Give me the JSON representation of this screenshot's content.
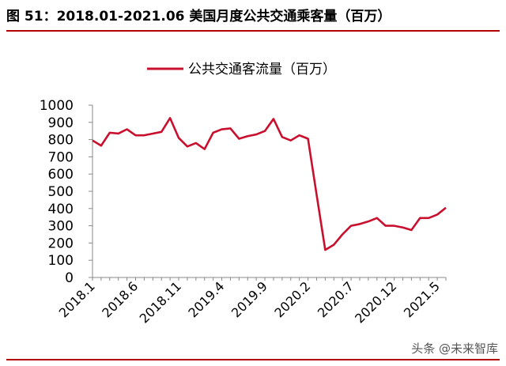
{
  "figure_title": "图 51：2018.01-2021.06 美国月度公共交通乘客量（百万）",
  "watermark": "头条 @未来智库",
  "colors": {
    "line": "#c8102e",
    "rule": "#b30000"
  },
  "chart_data": {
    "type": "line",
    "title": "",
    "xlabel": "",
    "ylabel": "",
    "ylim": [
      0,
      1000
    ],
    "yticks": [
      0,
      100,
      200,
      300,
      400,
      500,
      600,
      700,
      800,
      900,
      1000
    ],
    "legend_position": "top-center",
    "grid": false,
    "xtick_labels": [
      {
        "label": "2018.1",
        "index": 0
      },
      {
        "label": "2018.6",
        "index": 5
      },
      {
        "label": "2018.11",
        "index": 10
      },
      {
        "label": "2019.4",
        "index": 15
      },
      {
        "label": "2019.9",
        "index": 20
      },
      {
        "label": "2020.2",
        "index": 25
      },
      {
        "label": "2020.7",
        "index": 30
      },
      {
        "label": "2020.12",
        "index": 35
      },
      {
        "label": "2021.5",
        "index": 40
      }
    ],
    "series": [
      {
        "name": "公共交通客流量（百万）",
        "values": [
          795,
          765,
          840,
          835,
          860,
          825,
          825,
          835,
          845,
          925,
          810,
          760,
          780,
          745,
          840,
          860,
          865,
          805,
          820,
          830,
          850,
          920,
          815,
          795,
          825,
          805,
          480,
          160,
          190,
          250,
          300,
          310,
          325,
          345,
          300,
          300,
          290,
          275,
          345,
          345,
          365,
          405
        ]
      }
    ]
  }
}
